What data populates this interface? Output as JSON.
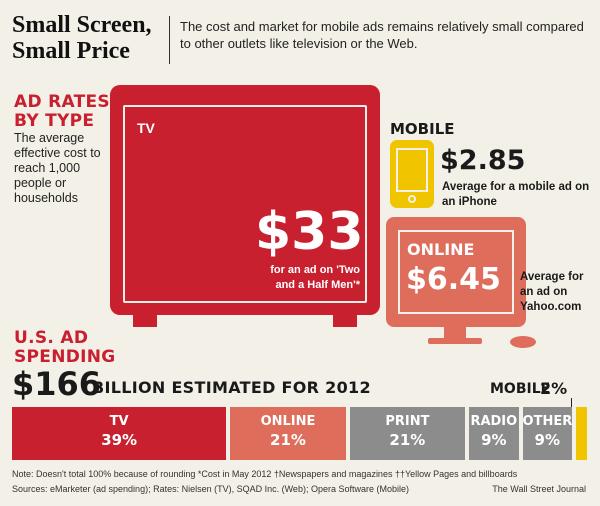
{
  "header": {
    "title": "Small Screen, Small Price",
    "subtitle": "The cost and market for mobile ads remains relatively small compared to other outlets like television or the Web."
  },
  "ad_rates": {
    "heading_line1": "AD RATES",
    "heading_line2": "BY TYPE",
    "description": "The average effective cost to reach 1,000 people or households",
    "tv": {
      "label": "TV",
      "price": "$33",
      "note": "for an ad on 'Two and a Half Men'*"
    },
    "mobile": {
      "label": "MOBILE",
      "price": "$2.85",
      "note": "Average for a mobile ad on an iPhone"
    },
    "online": {
      "label": "ONLINE",
      "price": "$6.45",
      "note": "Average for an ad on Yahoo.com"
    }
  },
  "spending": {
    "heading_line1": "U.S. AD",
    "heading_line2": "SPENDING",
    "total": "$166",
    "total_suffix": "BILLION ESTIMATED FOR 2012"
  },
  "chart_data": {
    "type": "bar",
    "title": "",
    "stacked_share": true,
    "unit": "percent",
    "categories": [
      "TV",
      "ONLINE",
      "PRINT",
      "RADIO",
      "OTHER",
      "MOBILE"
    ],
    "values": [
      39,
      21,
      21,
      9,
      9,
      2
    ],
    "value_labels": [
      "39%",
      "21%",
      "21%",
      "9%",
      "9%",
      "2%"
    ],
    "colors": [
      "#c8202f",
      "#df6d5c",
      "#8c8c8c",
      "#8c8c8c",
      "#8c8c8c",
      "#f0c500"
    ]
  },
  "footnotes": {
    "line1": "Note: Doesn't total 100% because of rounding   *Cost in May 2012   †Newspapers and magazines   ††Yellow Pages and billboards",
    "line2": "Sources: eMarketer (ad spending); Rates: Nielsen (TV), SQAD Inc. (Web); Opera Software (Mobile)",
    "credit": "The Wall Street Journal"
  }
}
